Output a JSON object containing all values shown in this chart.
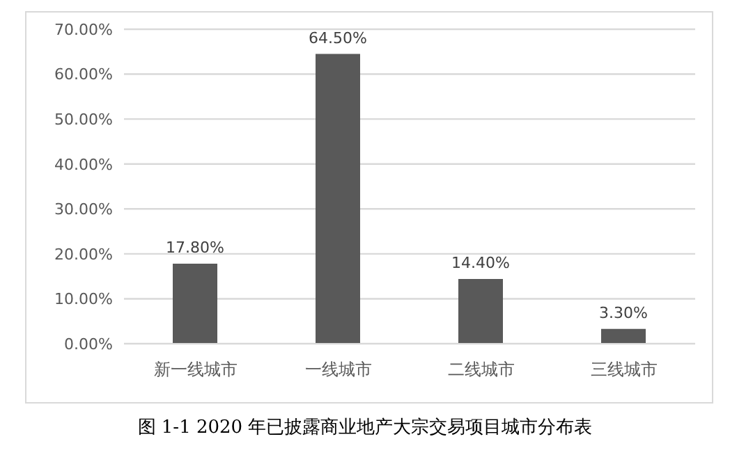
{
  "chart_data": {
    "type": "bar",
    "title": "图 1-1 2020 年已披露商业地产大宗交易项目城市分布表",
    "categories": [
      "新一线城市",
      "一线城市",
      "二线城市",
      "三线城市"
    ],
    "values": [
      17.8,
      64.5,
      14.4,
      3.3
    ],
    "value_labels": [
      "17.80%",
      "64.50%",
      "14.40%",
      "3.30%"
    ],
    "color": "#595959",
    "ylim": [
      0,
      70
    ],
    "yticks": [
      {
        "value": 0,
        "label": "0.00%"
      },
      {
        "value": 10,
        "label": "10.00%"
      },
      {
        "value": 20,
        "label": "20.00%"
      },
      {
        "value": 30,
        "label": "30.00%"
      },
      {
        "value": 40,
        "label": "40.00%"
      },
      {
        "value": 50,
        "label": "50.00%"
      },
      {
        "value": 60,
        "label": "60.00%"
      },
      {
        "value": 70,
        "label": "70.00%"
      }
    ],
    "grid": "y"
  }
}
